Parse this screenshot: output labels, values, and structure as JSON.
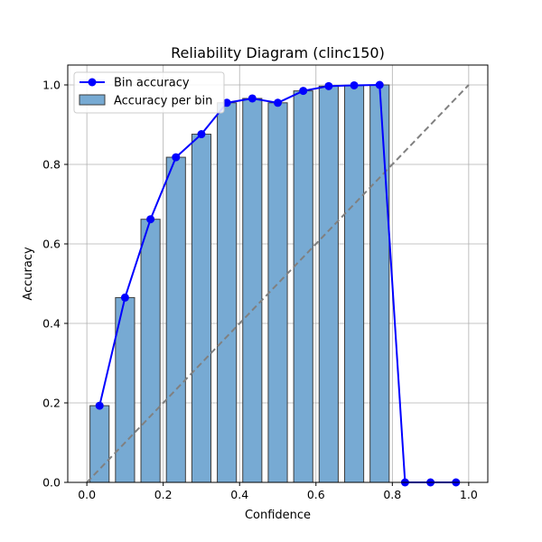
{
  "chart_data": {
    "type": "bar",
    "title": "Reliability Diagram (clinc150)",
    "xlabel": "Confidence",
    "ylabel": "Accuracy",
    "xlim": [
      -0.05,
      1.05
    ],
    "ylim": [
      0,
      1.05
    ],
    "xticks": [
      "0.0",
      "0.2",
      "0.4",
      "0.6",
      "0.8",
      "1.0"
    ],
    "yticks": [
      "0.0",
      "0.2",
      "0.4",
      "0.6",
      "0.8",
      "1.0"
    ],
    "grid": true,
    "legend_position": "top-left",
    "bin_width": 0.05,
    "bin_centers": [
      0.0333,
      0.1,
      0.1667,
      0.2333,
      0.3,
      0.3667,
      0.4333,
      0.5,
      0.5667,
      0.6333,
      0.7,
      0.7667,
      0.8333,
      0.9,
      0.9667
    ],
    "bars": {
      "name": "Accuracy per bin",
      "color": "#77aad3",
      "edge_color": "#3d3d3d",
      "values": [
        0.193,
        0.465,
        0.662,
        0.818,
        0.876,
        0.955,
        0.966,
        0.955,
        0.985,
        0.997,
        0.999,
        1.0,
        0,
        0,
        0
      ]
    },
    "line": {
      "name": "Bin accuracy",
      "color": "#0000ff",
      "values": [
        0.193,
        0.465,
        0.662,
        0.818,
        0.876,
        0.955,
        0.966,
        0.955,
        0.985,
        0.997,
        0.999,
        1.0,
        0.0,
        0.0,
        0.0
      ]
    },
    "diagonal": {
      "color": "#808080",
      "from": [
        0,
        0
      ],
      "to": [
        1,
        1
      ]
    }
  }
}
